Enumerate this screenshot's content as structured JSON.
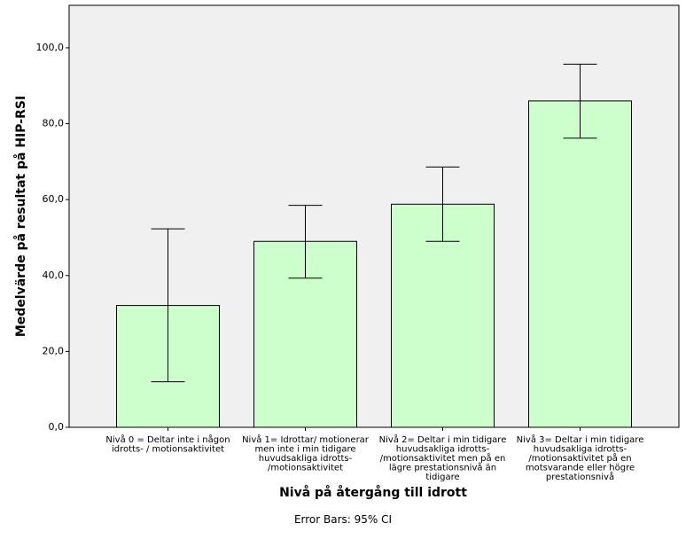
{
  "chart_data": {
    "type": "bar",
    "x_label": "Nivå på återgång till idrott",
    "y_label": "Medelvärde på resultat på HIP-RSI",
    "note": "Error Bars: 95% CI",
    "categories": [
      "Nivå 0 = Deltar inte i någon\nidrotts- / motionsaktivitet",
      "Nivå 1= Idrottar/ motionerar\nmen inte i min tidigare\nhuvudsakliga idrotts-\n/motionsaktivitet",
      "Nivå 2= Deltar i min tidigare\nhuvudsakliga idrotts-\n/motionsaktivitet men på en\nlägre prestationsnivå än\ntidigare",
      "Nivå 3= Deltar i min tidigare\nhuvudsakliga idrotts-\n/motionsaktivitet på en\nmotsvarande eller högre\nprestationsnivå"
    ],
    "values": [
      32.1,
      49.0,
      58.8,
      86.0
    ],
    "ci_low": [
      12.0,
      39.3,
      49.0,
      76.2
    ],
    "ci_high": [
      52.3,
      58.5,
      68.6,
      95.7
    ],
    "color": "#ccffcc",
    "ylim": [
      0,
      111.2
    ],
    "yticks": [
      {
        "value": 0,
        "label": "0,0"
      },
      {
        "value": 20,
        "label": "20,0"
      },
      {
        "value": 40,
        "label": "40,0"
      },
      {
        "value": 60,
        "label": "60,0"
      },
      {
        "value": 80,
        "label": "80,0"
      },
      {
        "value": 100,
        "label": "100,0"
      }
    ]
  }
}
